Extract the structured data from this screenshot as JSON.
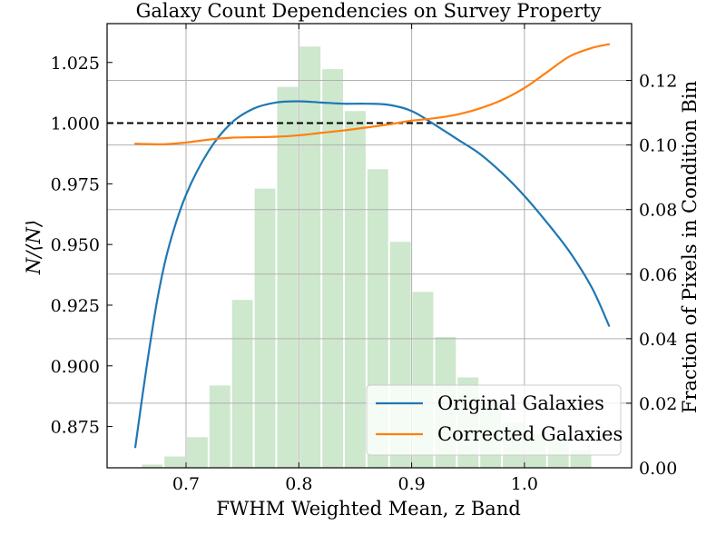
{
  "chart_data": {
    "type": "line",
    "title": "Galaxy Count Dependencies on Survey Property",
    "xlabel": "FWHM Weighted Mean, z Band",
    "ylabel": "N/⟨N⟩",
    "y2label": "Fraction of Pixels in Condition Bin",
    "xlim": [
      0.63,
      1.095
    ],
    "ylim": [
      0.858,
      1.041
    ],
    "y2lim": [
      0.0,
      0.1376
    ],
    "x_ticks": [
      0.7,
      0.8,
      0.9,
      1.0
    ],
    "x_tick_labels": [
      "0.7",
      "0.8",
      "0.9",
      "1.0"
    ],
    "y_ticks": [
      0.875,
      0.9,
      0.925,
      0.95,
      0.975,
      1.0,
      1.025
    ],
    "y_tick_labels": [
      "0.875",
      "0.900",
      "0.925",
      "0.950",
      "0.975",
      "1.000",
      "1.025"
    ],
    "y2_ticks": [
      0.0,
      0.02,
      0.04,
      0.06,
      0.08,
      0.1,
      0.12
    ],
    "y2_tick_labels": [
      "0.00",
      "0.02",
      "0.04",
      "0.06",
      "0.08",
      "0.10",
      "0.12"
    ],
    "grid": true,
    "reference_line": {
      "y": 1.0,
      "style": "dashed",
      "color": "#000000"
    },
    "series": [
      {
        "name": "Original Galaxies",
        "color": "#1f77b4",
        "x": [
          0.655,
          0.665,
          0.675,
          0.685,
          0.7,
          0.72,
          0.74,
          0.76,
          0.78,
          0.8,
          0.82,
          0.84,
          0.86,
          0.88,
          0.9,
          0.92,
          0.94,
          0.96,
          0.98,
          1.0,
          1.02,
          1.04,
          1.06,
          1.075
        ],
        "values": [
          0.8665,
          0.8995,
          0.9285,
          0.9495,
          0.9705,
          0.9885,
          1.0,
          1.006,
          1.0085,
          1.009,
          1.0085,
          1.008,
          1.008,
          1.0075,
          1.005,
          0.9995,
          0.9935,
          0.9875,
          0.9795,
          0.97,
          0.959,
          0.947,
          0.932,
          0.9165
        ]
      },
      {
        "name": "Corrected Galaxies",
        "color": "#ff7f0e",
        "x": [
          0.655,
          0.68,
          0.7,
          0.72,
          0.74,
          0.76,
          0.78,
          0.8,
          0.82,
          0.84,
          0.86,
          0.88,
          0.9,
          0.92,
          0.94,
          0.96,
          0.98,
          1.0,
          1.02,
          1.04,
          1.06,
          1.075
        ],
        "values": [
          0.9915,
          0.9913,
          0.992,
          0.9932,
          0.994,
          0.9942,
          0.9944,
          0.995,
          0.996,
          0.997,
          0.9982,
          0.9995,
          1.001,
          1.002,
          1.0035,
          1.006,
          1.0095,
          1.0145,
          1.021,
          1.0275,
          1.031,
          1.0325
        ]
      }
    ],
    "histogram": {
      "axis": "secondary",
      "color": "#2ca02c",
      "opacity": 0.24,
      "bin_edges": [
        0.64,
        0.66,
        0.68,
        0.7,
        0.72,
        0.74,
        0.76,
        0.78,
        0.8,
        0.82,
        0.84,
        0.86,
        0.88,
        0.9,
        0.92,
        0.94,
        0.96,
        0.98,
        1.0,
        1.02,
        1.04,
        1.06,
        1.08
      ],
      "values": [
        0.0001,
        0.001,
        0.0035,
        0.0095,
        0.0255,
        0.052,
        0.0865,
        0.118,
        0.1305,
        0.1235,
        0.1105,
        0.0925,
        0.07,
        0.0545,
        0.0405,
        0.028,
        0.0205,
        0.014,
        0.0105,
        0.0085,
        0.0055,
        0.0
      ]
    },
    "legend": {
      "position": "lower-right",
      "entries": [
        "Original Galaxies",
        "Corrected Galaxies"
      ]
    }
  }
}
